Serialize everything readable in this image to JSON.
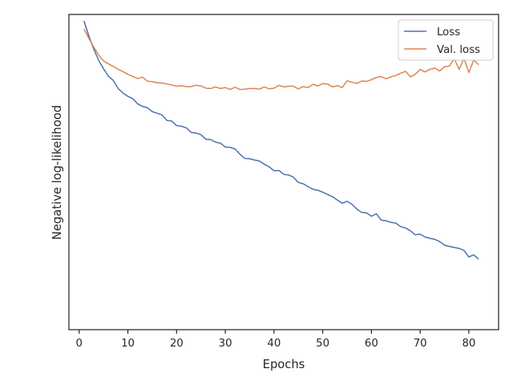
{
  "chart_data": {
    "type": "line",
    "title": "",
    "xlabel": "Epochs",
    "ylabel": "Negative log-likelihood",
    "xlim": [
      -2.1,
      86.1
    ],
    "ylim": [
      0.015,
      0.985
    ],
    "xticks": [
      0,
      10,
      20,
      30,
      40,
      50,
      60,
      70,
      80
    ],
    "yticks_shown": false,
    "grid": false,
    "legend": {
      "placement": "top-right"
    },
    "series": [
      {
        "name": "Loss",
        "color": "#4c72b0",
        "x": [
          1,
          2,
          3,
          4,
          5,
          6,
          7,
          8,
          9,
          10,
          11,
          12,
          13,
          14,
          15,
          16,
          17,
          18,
          19,
          20,
          21,
          22,
          23,
          24,
          25,
          26,
          27,
          28,
          29,
          30,
          31,
          32,
          33,
          34,
          35,
          36,
          37,
          38,
          39,
          40,
          41,
          42,
          43,
          44,
          45,
          46,
          47,
          48,
          49,
          50,
          51,
          52,
          53,
          54,
          55,
          56,
          57,
          58,
          59,
          60,
          61,
          62,
          63,
          64,
          65,
          66,
          67,
          68,
          69,
          70,
          71,
          72,
          73,
          74,
          75,
          76,
          77,
          78,
          79,
          80,
          81,
          82
        ],
        "values": [
          0.965,
          0.918,
          0.878,
          0.844,
          0.818,
          0.795,
          0.782,
          0.757,
          0.743,
          0.733,
          0.726,
          0.71,
          0.702,
          0.698,
          0.686,
          0.681,
          0.676,
          0.659,
          0.657,
          0.643,
          0.641,
          0.636,
          0.622,
          0.62,
          0.615,
          0.601,
          0.6,
          0.592,
          0.589,
          0.577,
          0.576,
          0.571,
          0.555,
          0.542,
          0.541,
          0.537,
          0.534,
          0.524,
          0.516,
          0.504,
          0.505,
          0.493,
          0.491,
          0.484,
          0.468,
          0.464,
          0.455,
          0.447,
          0.444,
          0.438,
          0.431,
          0.424,
          0.414,
          0.404,
          0.41,
          0.401,
          0.386,
          0.376,
          0.374,
          0.364,
          0.372,
          0.352,
          0.35,
          0.345,
          0.343,
          0.332,
          0.328,
          0.319,
          0.307,
          0.309,
          0.3,
          0.296,
          0.293,
          0.286,
          0.275,
          0.271,
          0.268,
          0.265,
          0.259,
          0.239,
          0.245,
          0.232
        ]
      },
      {
        "name": "Val. loss",
        "color": "#dd8452",
        "x": [
          1,
          2,
          3,
          4,
          5,
          6,
          7,
          8,
          9,
          10,
          11,
          12,
          13,
          14,
          15,
          16,
          17,
          18,
          19,
          20,
          21,
          22,
          23,
          24,
          25,
          26,
          27,
          28,
          29,
          30,
          31,
          32,
          33,
          34,
          35,
          36,
          37,
          38,
          39,
          40,
          41,
          42,
          43,
          44,
          45,
          46,
          47,
          48,
          49,
          50,
          51,
          52,
          53,
          54,
          55,
          56,
          57,
          58,
          59,
          60,
          61,
          62,
          63,
          64,
          65,
          66,
          67,
          68,
          69,
          70,
          71,
          72,
          73,
          74,
          75,
          76,
          77,
          78,
          79,
          80,
          81,
          82
        ],
        "values": [
          0.94,
          0.911,
          0.884,
          0.86,
          0.842,
          0.833,
          0.825,
          0.816,
          0.809,
          0.801,
          0.794,
          0.788,
          0.792,
          0.78,
          0.778,
          0.775,
          0.774,
          0.771,
          0.768,
          0.764,
          0.766,
          0.763,
          0.763,
          0.767,
          0.765,
          0.758,
          0.757,
          0.762,
          0.757,
          0.76,
          0.754,
          0.761,
          0.754,
          0.755,
          0.757,
          0.757,
          0.755,
          0.762,
          0.756,
          0.758,
          0.767,
          0.762,
          0.764,
          0.764,
          0.756,
          0.763,
          0.76,
          0.77,
          0.765,
          0.772,
          0.771,
          0.762,
          0.766,
          0.76,
          0.781,
          0.776,
          0.773,
          0.78,
          0.779,
          0.784,
          0.791,
          0.794,
          0.787,
          0.793,
          0.797,
          0.804,
          0.81,
          0.793,
          0.801,
          0.816,
          0.808,
          0.816,
          0.82,
          0.811,
          0.824,
          0.826,
          0.849,
          0.816,
          0.85,
          0.806,
          0.845,
          0.83
        ]
      }
    ]
  }
}
